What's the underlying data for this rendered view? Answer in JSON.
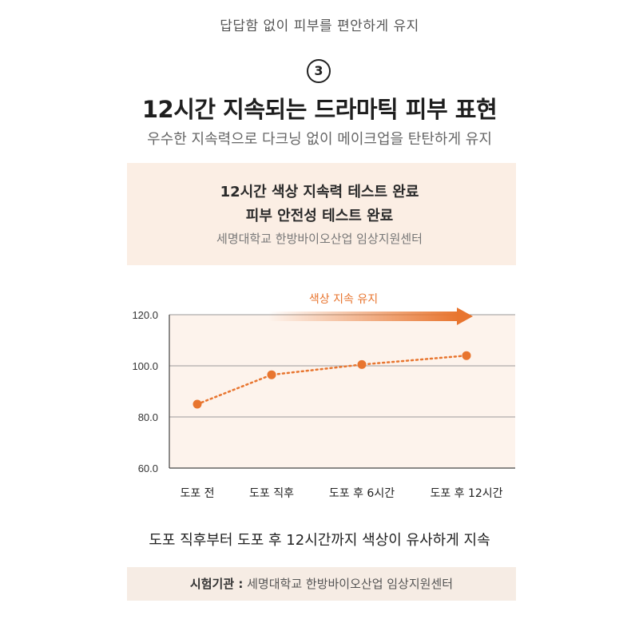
{
  "top_subtitle": "답답함 없이 피부를 편안하게 유지",
  "step_number": "3",
  "headline": "12시간 지속되는 드라마틱 피부 표현",
  "subheadline": "우수한 지속력으로 다크닝 없이 메이크업을 탄탄하게 유지",
  "info_box": {
    "line1": "12시간 색상 지속력 테스트 완료",
    "line2": "피부 안전성 테스트 완료",
    "line3": "세명대학교 한방바이오산업 임상지원센터"
  },
  "summary_text": "도포 직후부터 도포 후 12시간까지 색상이 유사하게 지속",
  "footer": {
    "label": "시험기관 :",
    "value": "세명대학교 한방바이오산업 임상지원센터"
  },
  "colors": {
    "accent": "#e8752f",
    "chart_bg": "#fdf3ec",
    "info_bg": "#fbeee4",
    "grid": "#9a9a9a"
  },
  "chart_data": {
    "type": "line",
    "title": "",
    "arrow_label": "색상 지속 유지",
    "xlabel": "",
    "ylabel": "",
    "categories": [
      "도포 전",
      "도포 직후",
      "도포 후 6시간",
      "도포 후 12시간"
    ],
    "values": [
      85,
      96.5,
      100.5,
      104
    ],
    "ylim": [
      60,
      120
    ],
    "yticks": [
      "60.0",
      "80.0",
      "100.0",
      "120.0"
    ],
    "grid": true,
    "line_style": "dotted"
  }
}
